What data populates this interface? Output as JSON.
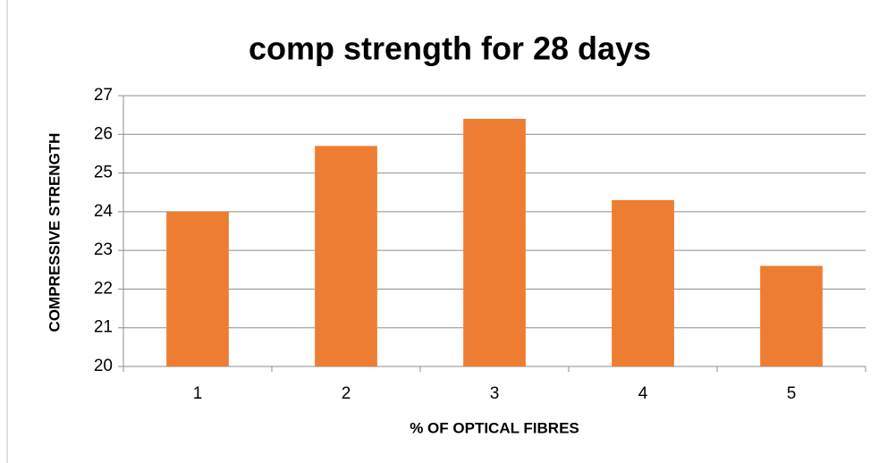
{
  "chart_data": {
    "type": "bar",
    "title": "comp strength for 28 days",
    "x_label": "% OF OPTICAL FIBRES",
    "y_label": "COMPRESSIVE STRENGTH",
    "categories": [
      "1",
      "2",
      "3",
      "4",
      "5"
    ],
    "values": [
      24,
      25.7,
      26.4,
      24.3,
      22.6
    ],
    "color": "#ed7d31",
    "ylim": [
      20,
      27
    ],
    "yticks": [
      20,
      21,
      22,
      23,
      24,
      25,
      26,
      27
    ],
    "grid": true
  }
}
